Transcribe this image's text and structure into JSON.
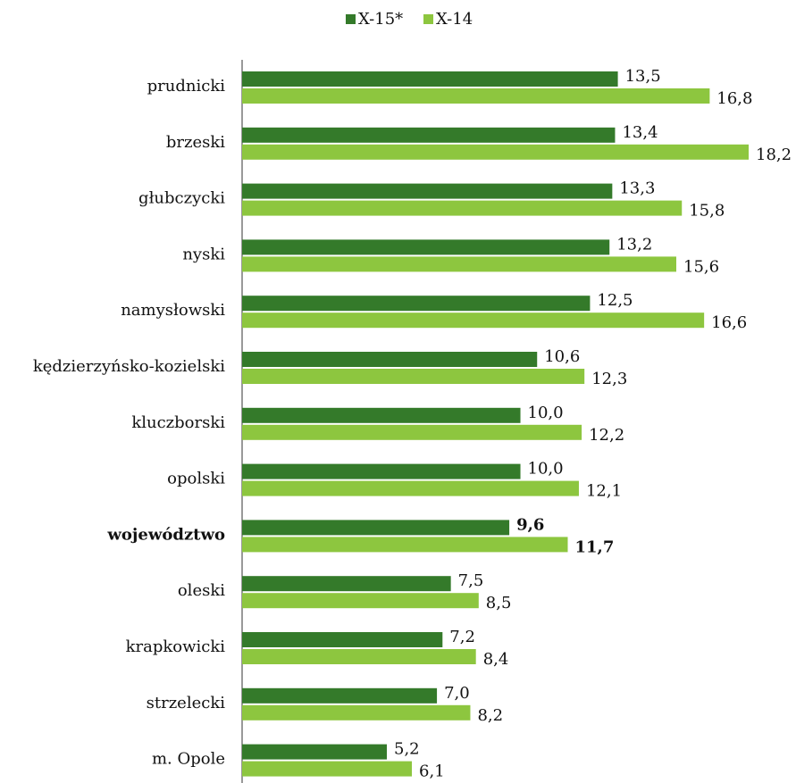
{
  "chart_data": {
    "type": "bar",
    "orientation": "horizontal",
    "categories": [
      "prudnicki",
      "brzeski",
      "głubczycki",
      "nyski",
      "namysłowski",
      "kędzierzyńsko-kozielski",
      "kluczborski",
      "opolski",
      "województwo",
      "oleski",
      "krapkowicki",
      "strzelecki",
      "m. Opole"
    ],
    "bold_categories": [
      8
    ],
    "xlim": [
      0,
      18.2
    ],
    "legend": "top",
    "series": [
      {
        "name": "X-15*",
        "color": "#347a2a",
        "values": [
          13.5,
          13.4,
          13.3,
          13.2,
          12.5,
          10.6,
          10.0,
          10.0,
          9.6,
          7.5,
          7.2,
          7.0,
          5.2
        ],
        "value_labels": [
          "13,5",
          "13,4",
          "13,3",
          "13,2",
          "12,5",
          "10,6",
          "10,0",
          "10,0",
          "9,6",
          "7,5",
          "7,2",
          "7,0",
          "5,2"
        ]
      },
      {
        "name": "X-14",
        "color": "#8dc63f",
        "values": [
          16.8,
          18.2,
          15.8,
          15.6,
          16.6,
          12.3,
          12.2,
          12.1,
          11.7,
          8.5,
          8.4,
          8.2,
          6.1
        ],
        "value_labels": [
          "16,8",
          "18,2",
          "15,8",
          "15,6",
          "16,6",
          "12,3",
          "12,2",
          "12,1",
          "11,7",
          "8,5",
          "8,4",
          "8,2",
          "6,1"
        ]
      }
    ]
  }
}
